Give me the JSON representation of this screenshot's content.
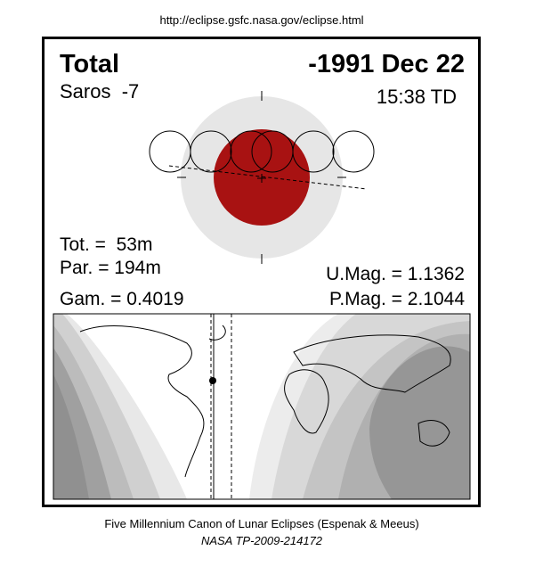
{
  "url": "http://eclipse.gsfc.nasa.gov/eclipse.html",
  "header": {
    "type": "Total",
    "date": "-1991 Dec 22",
    "saros": "Saros  -7",
    "time": "15:38 TD"
  },
  "stats": {
    "tot": "Tot. =  53m",
    "par": "Par. = 194m",
    "gam": "Gam. = 0.4019",
    "umag": "U.Mag. = 1.1362",
    "pmag": "P.Mag. = 2.1044"
  },
  "footer": {
    "canon": "Five Millennium Canon of Lunar Eclipses (Espenak & Meeus)",
    "ref": "NASA TP-2009-214172"
  }
}
